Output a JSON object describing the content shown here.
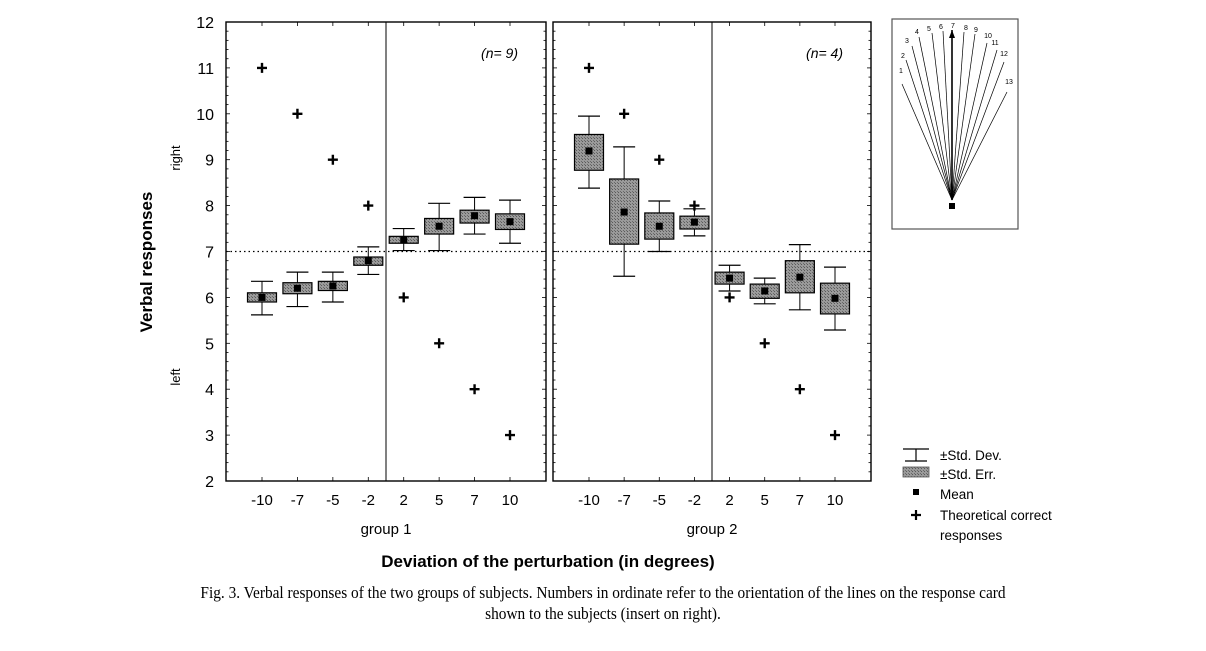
{
  "chart_data": {
    "type": "box",
    "ylabel": "Verbal responses",
    "ylabel_right": "right",
    "ylabel_left": "left",
    "xlabel": "Deviation of the perturbation (in degrees)",
    "ylim": [
      2,
      12
    ],
    "yticks": [
      2,
      3,
      4,
      5,
      6,
      7,
      8,
      9,
      10,
      11,
      12
    ],
    "reference_line": 7,
    "categories": [
      "-10",
      "-7",
      "-5",
      "-2",
      "2",
      "5",
      "7",
      "10"
    ],
    "groups": [
      {
        "name": "group 1",
        "n_label": "(n= 9)",
        "theoretical": [
          11,
          10,
          9,
          8,
          6,
          5,
          4,
          3
        ],
        "mean": [
          6.0,
          6.2,
          6.25,
          6.8,
          7.25,
          7.55,
          7.78,
          7.65
        ],
        "se_low": [
          5.9,
          6.08,
          6.15,
          6.7,
          7.18,
          7.38,
          7.62,
          7.48
        ],
        "se_high": [
          6.1,
          6.32,
          6.35,
          6.88,
          7.33,
          7.72,
          7.9,
          7.82
        ],
        "sd_low": [
          5.62,
          5.8,
          5.9,
          6.5,
          7.02,
          7.02,
          7.38,
          7.18
        ],
        "sd_high": [
          6.35,
          6.55,
          6.55,
          7.1,
          7.5,
          8.05,
          8.18,
          8.12
        ]
      },
      {
        "name": "group 2",
        "n_label": "(n= 4)",
        "theoretical": [
          11,
          10,
          9,
          8,
          6,
          5,
          4,
          3
        ],
        "mean": [
          9.19,
          7.86,
          7.55,
          7.64,
          6.42,
          6.14,
          6.44,
          5.98
        ],
        "se_low": [
          8.77,
          7.16,
          7.27,
          7.49,
          6.29,
          5.98,
          6.1,
          5.64
        ],
        "se_high": [
          9.55,
          8.58,
          7.84,
          7.77,
          6.55,
          6.29,
          6.8,
          6.31
        ],
        "sd_low": [
          8.38,
          6.46,
          7.0,
          7.34,
          6.14,
          5.86,
          5.73,
          5.29
        ],
        "sd_high": [
          9.95,
          9.28,
          8.1,
          7.93,
          6.7,
          6.42,
          7.15,
          6.66
        ]
      }
    ],
    "legend": {
      "position": "bottom-right",
      "items": [
        "±Std. Dev.",
        "±Std. Err.",
        "Mean",
        "Theoretical correct",
        "responses"
      ]
    },
    "insert": {
      "line_labels": [
        "1",
        "2",
        "3",
        "4",
        "5",
        "6",
        "7",
        "8",
        "9",
        "10",
        "11",
        "12",
        "13"
      ]
    },
    "colors": {
      "box_fill": "#8a8a8a",
      "frame": "#000000",
      "text": "#000000"
    }
  },
  "caption": {
    "line1": "Fig. 3. Verbal responses of the two groups of subjects. Numbers in ordinate refer to the orientation of the lines on the response card",
    "line2": "shown to the subjects (insert on right)."
  }
}
